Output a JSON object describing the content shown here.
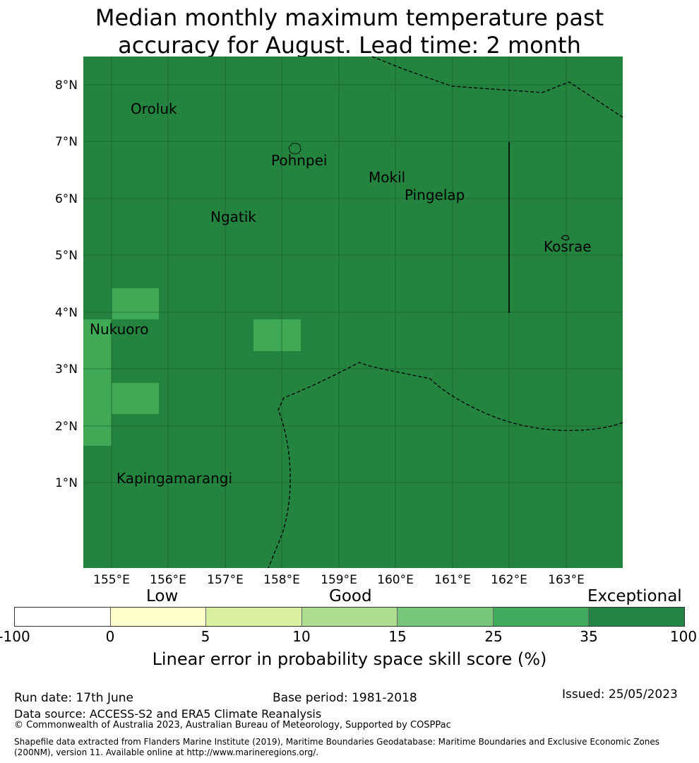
{
  "title": {
    "line1": "Median monthly maximum temperature past",
    "line2": "accuracy for August. Lead time: 2 month"
  },
  "map": {
    "colors": {
      "background": "#23833f",
      "cell": "#40a955",
      "graticule": "#1a5e2b",
      "boundary": "#000000"
    },
    "lat_labels": [
      "8°N",
      "7°N",
      "6°N",
      "5°N",
      "4°N",
      "3°N",
      "2°N",
      "1°N"
    ],
    "lon_labels": [
      "155°E",
      "156°E",
      "157°E",
      "158°E",
      "159°E",
      "160°E",
      "161°E",
      "162°E",
      "163°E"
    ],
    "places": [
      {
        "name": "Oroluk",
        "lon": 155.75,
        "lat": 7.6
      },
      {
        "name": "Pohnpei",
        "lon": 158.3,
        "lat": 6.88
      },
      {
        "name": "Mokil",
        "lon": 159.75,
        "lat": 6.68
      },
      {
        "name": "Pingelap",
        "lon": 160.7,
        "lat": 6.22
      },
      {
        "name": "Ngatik",
        "lon": 157.15,
        "lat": 5.78
      },
      {
        "name": "Kosrae",
        "lon": 162.98,
        "lat": 5.32
      },
      {
        "name": "Nukuoro",
        "lon": 154.85,
        "lat": 3.85
      },
      {
        "name": "Kapingamarangi",
        "lon": 154.8,
        "lat": 1.08
      }
    ]
  },
  "legend": {
    "categories": [
      "Low",
      "Good",
      "Exceptional"
    ],
    "ticks": [
      "-100",
      "0",
      "5",
      "10",
      "15",
      "25",
      "35",
      "100"
    ],
    "colors": [
      "#ffffff",
      "#ffffcc",
      "#d9f0a3",
      "#addd8e",
      "#78c679",
      "#41ab5d",
      "#238443"
    ],
    "label": "Linear error in probability space skill score (%)"
  },
  "footer": {
    "run_date": "Run date: 17th June",
    "base_period": "Base period: 1981-2018",
    "issued": "Issued: 25/05/2023",
    "data_source": "Data source: ACCESS-S2 and ERA5 Climate Reanalysis",
    "copyright": "© Commonwealth of Australia 2023, Australian Bureau of Meteorology, Supported by COSPPac",
    "shapefile_line1": "Shapefile data extracted from Flanders Marine Institute (2019), Maritime Boundaries Geodatabase: Maritime Boundaries and Exclusive Economic Zones",
    "shapefile_line2": "(200NM), version 11. Available online at http://www.marineregions.org/."
  }
}
